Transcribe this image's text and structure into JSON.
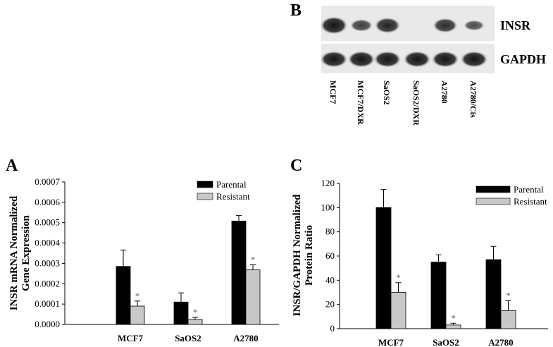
{
  "panel_b": {
    "letter": "B",
    "rows": [
      {
        "label": "INSR",
        "intensities": [
          1.0,
          0.55,
          0.85,
          0.0,
          0.75,
          0.4
        ]
      },
      {
        "label": "GAPDH",
        "intensities": [
          1.0,
          1.0,
          1.0,
          1.0,
          1.0,
          1.0
        ]
      }
    ],
    "lanes": [
      "MCF7",
      "MCF7/DXR",
      "SaOS2",
      "SaOS2/DXR",
      "A2780",
      "A2780/Cis"
    ]
  },
  "chart_data": [
    {
      "panel": "A",
      "type": "bar",
      "title": "",
      "xlabel": "",
      "ylabel_lines": [
        "INSR mRNA Normalized",
        "Gene Expression"
      ],
      "ylim": [
        0,
        0.0007
      ],
      "yticks": [
        "0.0000",
        "0.0001",
        "0.0002",
        "0.0003",
        "0.0004",
        "0.0005",
        "0.0006",
        "0.0007"
      ],
      "categories": [
        "MCF7",
        "SaOS2",
        "A2780"
      ],
      "series": [
        {
          "name": "Parental",
          "color": "#000000",
          "values": [
            0.000285,
            0.00011,
            0.000508
          ],
          "errors": [
            8e-05,
            4.5e-05,
            2.7e-05
          ],
          "sig": [
            false,
            false,
            false
          ]
        },
        {
          "name": "Resistant",
          "color": "#c8c8c8",
          "values": [
            9e-05,
            2.5e-05,
            0.000268
          ],
          "errors": [
            2.5e-05,
            1e-05,
            2.5e-05
          ],
          "sig": [
            true,
            true,
            true
          ]
        }
      ],
      "legend": "top-right",
      "grid": false
    },
    {
      "panel": "C",
      "type": "bar",
      "title": "",
      "xlabel": "",
      "ylabel_lines": [
        "INSR/GAPDH Normalized",
        "Protein Ratio"
      ],
      "ylim": [
        0,
        120
      ],
      "yticks": [
        "0",
        "20",
        "40",
        "60",
        "80",
        "100",
        "120"
      ],
      "categories": [
        "MCF7",
        "SaOS2",
        "A2780"
      ],
      "series": [
        {
          "name": "Parental",
          "color": "#000000",
          "values": [
            100,
            55,
            57
          ],
          "errors": [
            15,
            6,
            11
          ],
          "sig": [
            false,
            false,
            false
          ]
        },
        {
          "name": "Resistant",
          "color": "#c8c8c8",
          "values": [
            30,
            3,
            15
          ],
          "errors": [
            8,
            1.5,
            8
          ],
          "sig": [
            true,
            true,
            true
          ]
        }
      ],
      "legend": "top-right",
      "grid": false
    }
  ],
  "sig_marker": "*"
}
